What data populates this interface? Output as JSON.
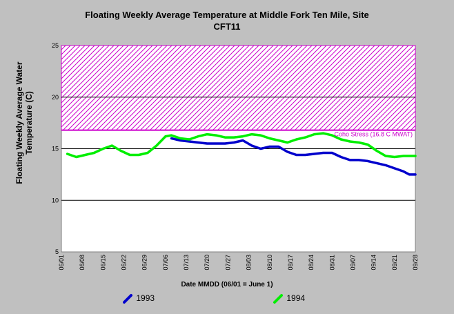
{
  "chart_data": {
    "type": "line",
    "title": "Floating Weekly Average Temperature at Middle Fork Ten Mile, Site",
    "subtitle": "CFT11",
    "xlabel": "Date MMDD (06/01 = June 1)",
    "ylabel": "Floating Weekly Average Water Temperature (C)",
    "ylim": [
      5,
      25
    ],
    "yticks": [
      5,
      10,
      15,
      20,
      25
    ],
    "xlim": [
      0,
      119
    ],
    "xticks": [
      0,
      7,
      14,
      21,
      28,
      35,
      42,
      49,
      56,
      63,
      70,
      77,
      84,
      91,
      98,
      105,
      112,
      119
    ],
    "xtick_labels": [
      "06/01",
      "06/08",
      "06/15",
      "06/22",
      "06/29",
      "07/06",
      "07/13",
      "07/20",
      "07/27",
      "08/03",
      "08/10",
      "08/17",
      "08/24",
      "08/31",
      "09/07",
      "09/14",
      "09/21",
      "09/28"
    ],
    "grid": "horizontal",
    "stress_band": {
      "low": 16.8,
      "high": 25,
      "label": "Coho Stress (16.8 C MWAT)",
      "color": "#cc00cc"
    },
    "series": [
      {
        "name": "1993",
        "color": "#0000cc",
        "x": [
          37,
          40,
          43,
          46,
          49,
          52,
          55,
          58,
          61,
          64,
          67,
          70,
          73,
          76,
          79,
          82,
          85,
          88,
          91,
          94,
          97,
          100,
          103,
          106,
          109,
          112,
          115,
          117,
          119
        ],
        "y": [
          16.0,
          15.8,
          15.7,
          15.6,
          15.5,
          15.5,
          15.5,
          15.6,
          15.8,
          15.3,
          15.0,
          15.2,
          15.2,
          14.7,
          14.4,
          14.4,
          14.5,
          14.6,
          14.6,
          14.2,
          13.9,
          13.9,
          13.8,
          13.6,
          13.4,
          13.1,
          12.8,
          12.5,
          12.5
        ]
      },
      {
        "name": "1994",
        "color": "#00ee00",
        "x": [
          2,
          5,
          8,
          11,
          14,
          17,
          20,
          23,
          26,
          29,
          32,
          35,
          37,
          40,
          43,
          46,
          49,
          52,
          55,
          58,
          61,
          64,
          67,
          70,
          73,
          76,
          79,
          82,
          85,
          88,
          91,
          94,
          97,
          100,
          103,
          106,
          109,
          112,
          115,
          117,
          119
        ],
        "y": [
          14.5,
          14.2,
          14.4,
          14.6,
          15.0,
          15.3,
          14.8,
          14.4,
          14.4,
          14.6,
          15.3,
          16.2,
          16.3,
          16.0,
          15.9,
          16.2,
          16.4,
          16.3,
          16.1,
          16.1,
          16.2,
          16.4,
          16.3,
          16.0,
          15.8,
          15.6,
          15.9,
          16.1,
          16.4,
          16.5,
          16.3,
          15.9,
          15.7,
          15.6,
          15.4,
          14.8,
          14.3,
          14.2,
          14.3,
          14.3,
          14.3
        ]
      }
    ]
  }
}
